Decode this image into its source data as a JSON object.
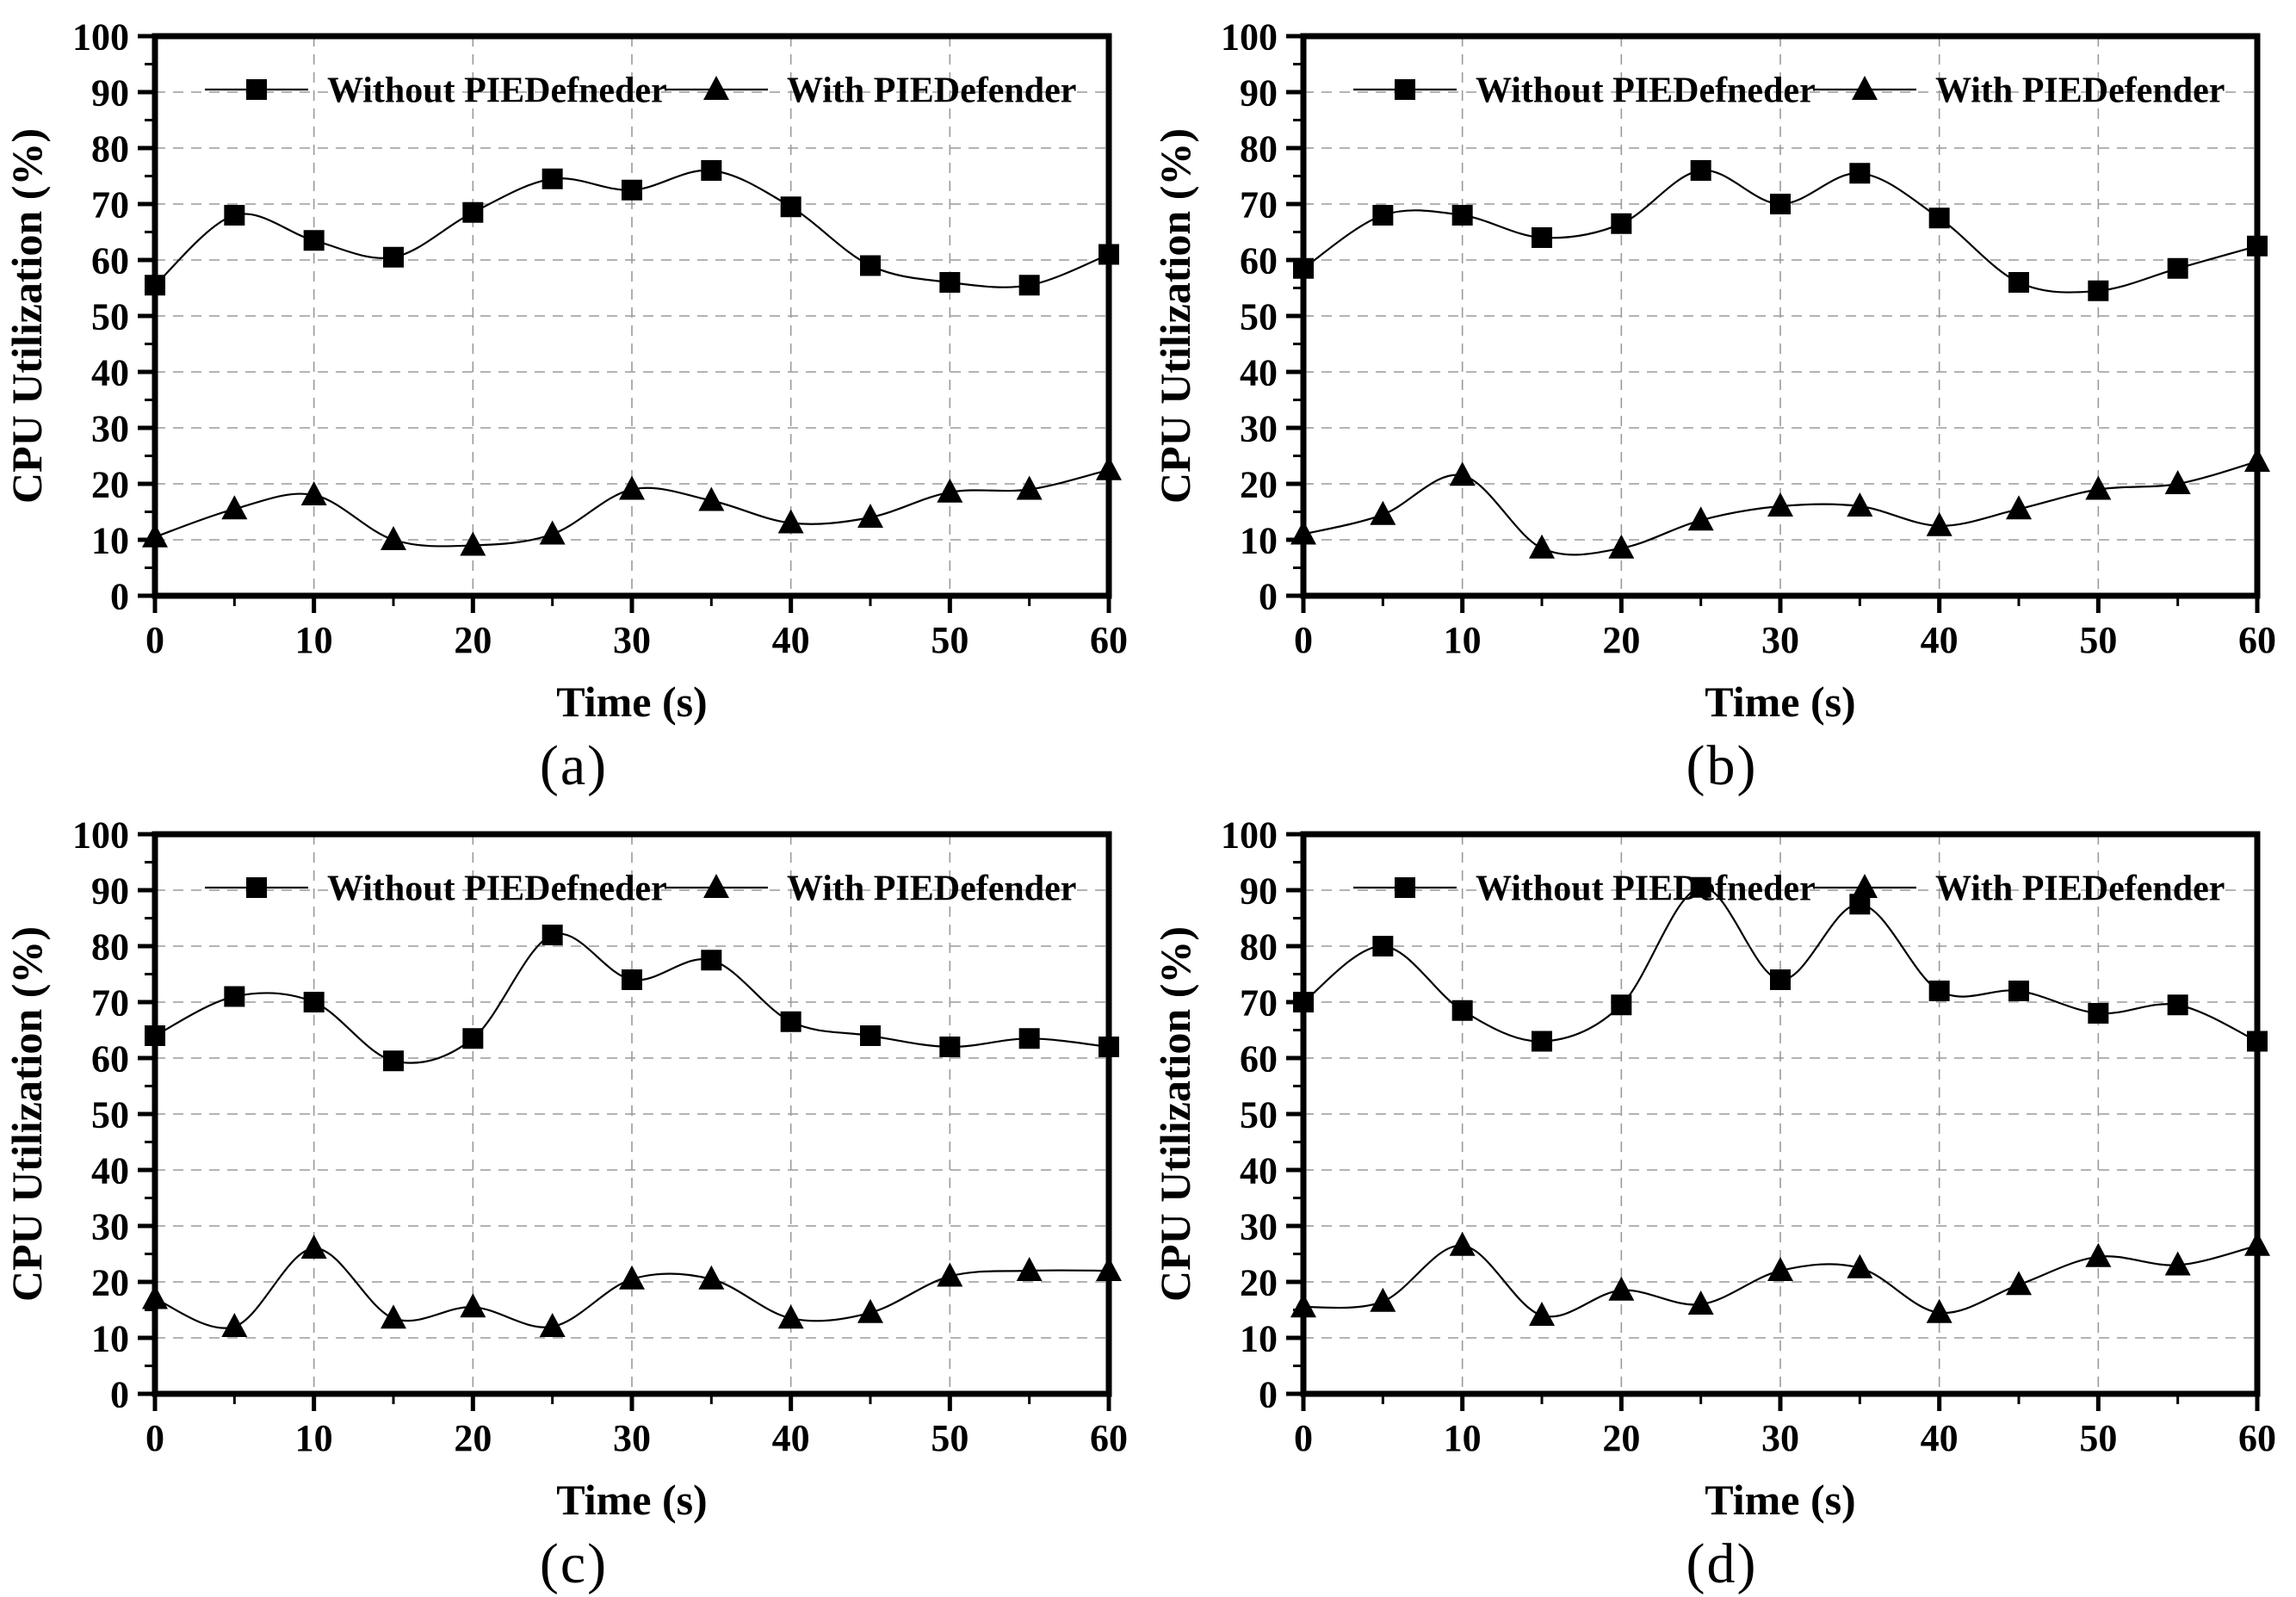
{
  "page": {
    "background": "#ffffff"
  },
  "figure": {
    "description": "Four-panel line chart figure comparing CPU utilization over time with and without PIEDefender",
    "colors": {
      "series": "#000000",
      "grid": "#9a9a9a",
      "axis": "#000000",
      "background": "#ffffff"
    }
  },
  "chart_data": [
    {
      "type": "line",
      "panel_label": "(a)",
      "title": "",
      "xlabel": "Time (s)",
      "ylabel": "CPU Utilization (%)",
      "x": [
        0,
        5,
        10,
        15,
        20,
        25,
        30,
        35,
        40,
        45,
        50,
        55,
        60
      ],
      "xlim": [
        0,
        60
      ],
      "ylim": [
        0,
        100
      ],
      "xticks": [
        0,
        10,
        20,
        30,
        40,
        50,
        60
      ],
      "yticks": [
        0,
        10,
        20,
        30,
        40,
        50,
        60,
        70,
        80,
        90,
        100
      ],
      "grid": true,
      "legend_position": "top-inside",
      "series": [
        {
          "name": "Without PIEDefneder",
          "marker": "filled-square",
          "values": [
            55.5,
            68,
            63.5,
            60.5,
            68.5,
            74.5,
            72.5,
            76,
            69.5,
            59,
            56,
            55.5,
            61
          ]
        },
        {
          "name": "With PIEDefender",
          "marker": "filled-triangle",
          "values": [
            10.5,
            15.5,
            18,
            10,
            9,
            11,
            19,
            17,
            13,
            14,
            18.5,
            19,
            22.5
          ]
        }
      ]
    },
    {
      "type": "line",
      "panel_label": "(b)",
      "title": "",
      "xlabel": "Time (s)",
      "ylabel": "CPU Utilization (%)",
      "x": [
        0,
        5,
        10,
        15,
        20,
        25,
        30,
        35,
        40,
        45,
        50,
        55,
        60
      ],
      "xlim": [
        0,
        60
      ],
      "ylim": [
        0,
        100
      ],
      "xticks": [
        0,
        10,
        20,
        30,
        40,
        50,
        60
      ],
      "yticks": [
        0,
        10,
        20,
        30,
        40,
        50,
        60,
        70,
        80,
        90,
        100
      ],
      "grid": true,
      "legend_position": "top-inside",
      "series": [
        {
          "name": "Without PIEDefneder",
          "marker": "filled-square",
          "values": [
            58.5,
            68,
            68,
            64,
            66.5,
            76,
            70,
            75.5,
            67.5,
            56,
            54.5,
            58.5,
            62.5
          ]
        },
        {
          "name": "With PIEDefender",
          "marker": "filled-triangle",
          "values": [
            11,
            14.5,
            21.5,
            8.5,
            8.5,
            13.5,
            16,
            16,
            12.5,
            15.5,
            19,
            20,
            24
          ]
        }
      ]
    },
    {
      "type": "line",
      "panel_label": "(c)",
      "title": "",
      "xlabel": "Time (s)",
      "ylabel": "CPU Utilization (%)",
      "x": [
        0,
        5,
        10,
        15,
        20,
        25,
        30,
        35,
        40,
        45,
        50,
        55,
        60
      ],
      "xlim": [
        0,
        60
      ],
      "ylim": [
        0,
        100
      ],
      "xticks": [
        0,
        10,
        20,
        30,
        40,
        50,
        60
      ],
      "yticks": [
        0,
        10,
        20,
        30,
        40,
        50,
        60,
        70,
        80,
        90,
        100
      ],
      "grid": true,
      "legend_position": "top-inside",
      "series": [
        {
          "name": "Without PIEDefneder",
          "marker": "filled-square",
          "values": [
            64,
            71,
            70,
            59.5,
            63.5,
            82,
            74,
            77.5,
            66.5,
            64,
            62,
            63.5,
            62
          ]
        },
        {
          "name": "With PIEDefender",
          "marker": "filled-triangle",
          "values": [
            17,
            12,
            26,
            13.5,
            15.5,
            12,
            20.5,
            20.5,
            13.5,
            14.5,
            21,
            22,
            22
          ]
        }
      ]
    },
    {
      "type": "line",
      "panel_label": "(d)",
      "title": "",
      "xlabel": "Time (s)",
      "ylabel": "CPU Utilization (%)",
      "x": [
        0,
        5,
        10,
        15,
        20,
        25,
        30,
        35,
        40,
        45,
        50,
        55,
        60
      ],
      "xlim": [
        0,
        60
      ],
      "ylim": [
        0,
        100
      ],
      "xticks": [
        0,
        10,
        20,
        30,
        40,
        50,
        60
      ],
      "yticks": [
        0,
        10,
        20,
        30,
        40,
        50,
        60,
        70,
        80,
        90,
        100
      ],
      "grid": true,
      "legend_position": "top-inside",
      "series": [
        {
          "name": "Without PIEDefneder",
          "marker": "filled-square",
          "values": [
            70,
            80,
            68.5,
            63,
            69.5,
            90.5,
            74,
            87.5,
            72,
            72,
            68,
            69.5,
            63
          ]
        },
        {
          "name": "With PIEDefender",
          "marker": "filled-triangle",
          "values": [
            15.5,
            16.5,
            26.5,
            14,
            18.5,
            16,
            22,
            22.5,
            14.5,
            19.5,
            24.5,
            23,
            26.5
          ]
        }
      ]
    }
  ]
}
